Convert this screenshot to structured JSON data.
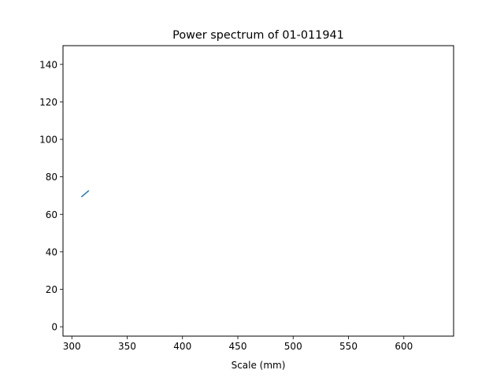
{
  "chart_data": {
    "type": "line",
    "title": "Power spectrum of 01-011941",
    "xlabel": "Scale (mm)",
    "ylabel": "",
    "xlim": [
      292,
      645
    ],
    "ylim": [
      -5,
      150
    ],
    "xticks": [
      300,
      350,
      400,
      450,
      500,
      550,
      600
    ],
    "yticks": [
      0,
      20,
      40,
      60,
      80,
      100,
      120,
      140
    ],
    "grid": false,
    "legend": "none",
    "series": [
      {
        "color": "#1f77b4",
        "points": [
          {
            "x": 309,
            "y": 69.5
          },
          {
            "x": 312,
            "y": 71.0
          },
          {
            "x": 315,
            "y": 72.5
          }
        ]
      }
    ]
  }
}
